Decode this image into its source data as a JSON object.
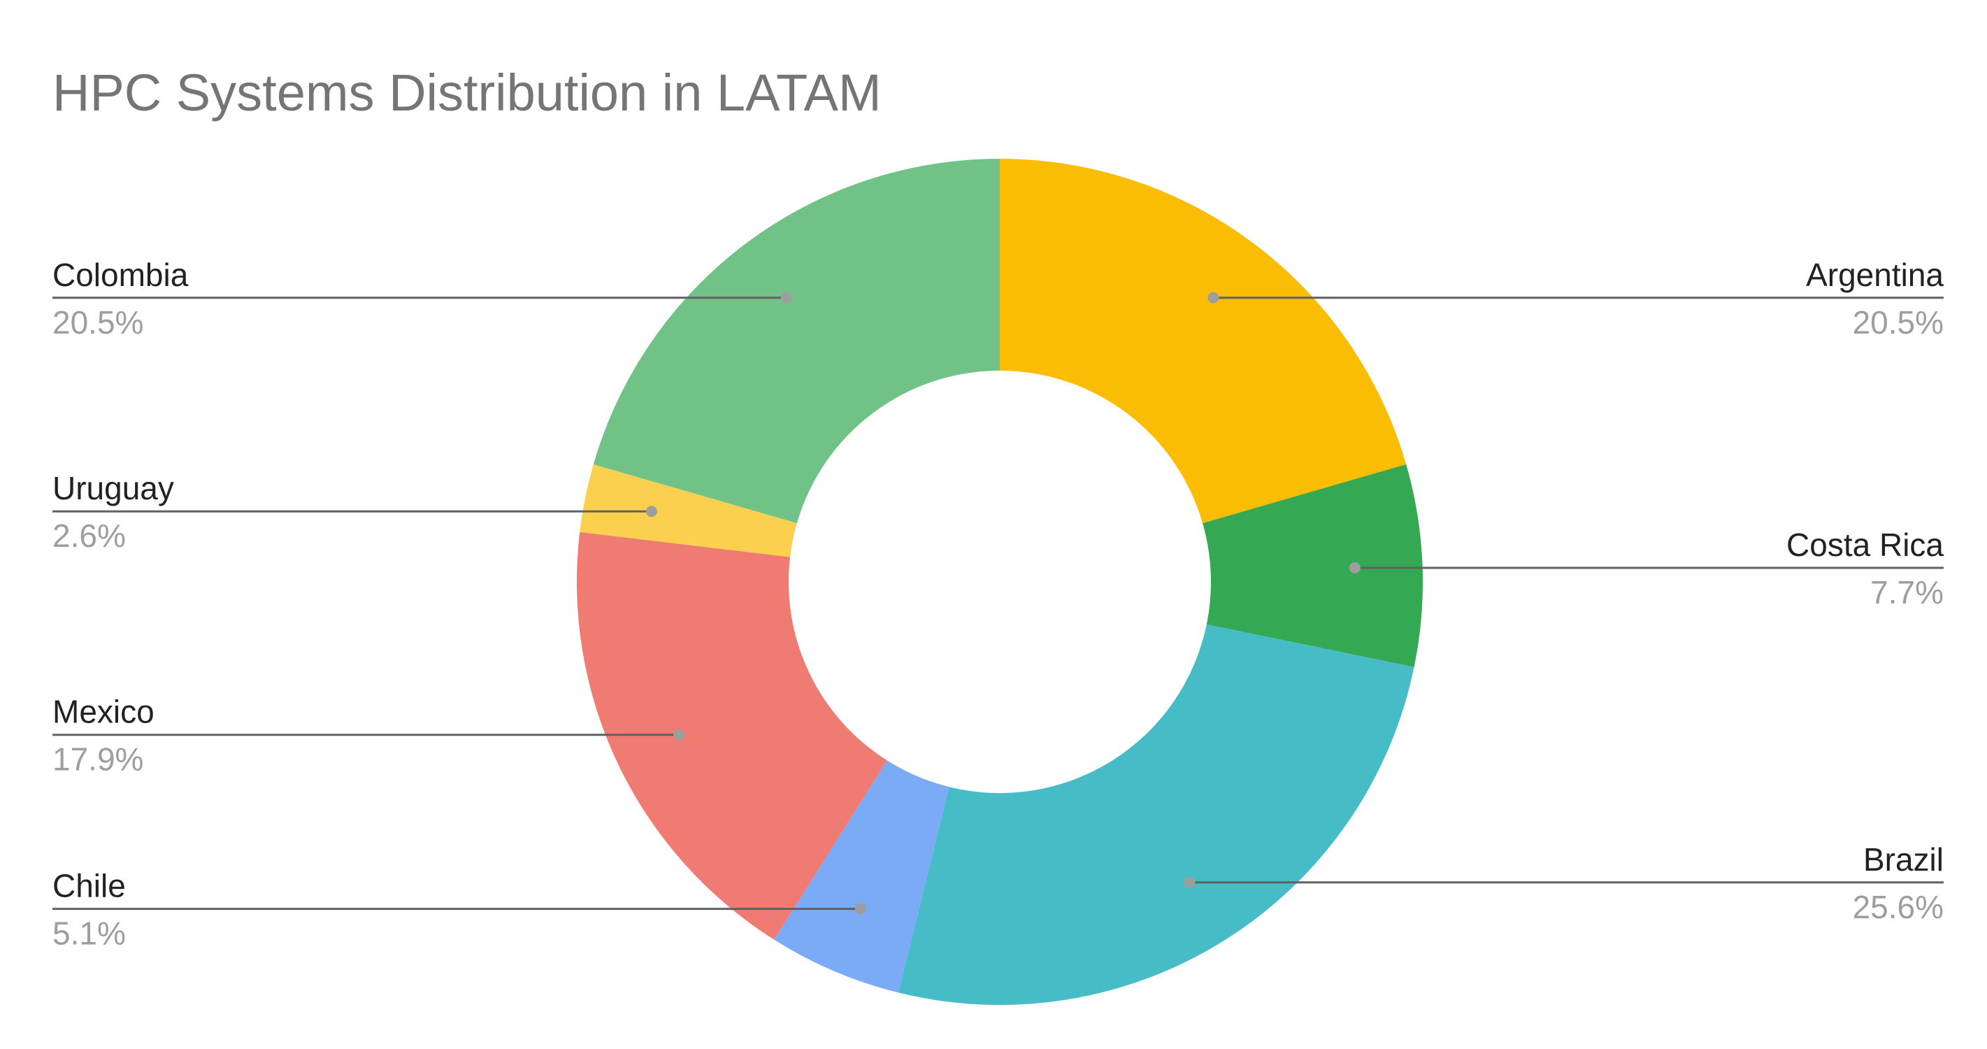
{
  "chart_data": {
    "type": "pie",
    "variant": "donut",
    "title": "HPC Systems Distribution in LATAM",
    "start_angle_deg": 0,
    "direction": "clockwise",
    "slices": [
      {
        "label": "Argentina",
        "percent_label": "20.5%",
        "value": 20.5,
        "color": "#fbbc04",
        "side": "right"
      },
      {
        "label": "Costa Rica",
        "percent_label": "7.7%",
        "value": 7.7,
        "color": "#34a853",
        "side": "right"
      },
      {
        "label": "Brazil",
        "percent_label": "25.6%",
        "value": 25.6,
        "color": "#46bdc6",
        "side": "right"
      },
      {
        "label": "Chile",
        "percent_label": "5.1%",
        "value": 5.1,
        "color": "#7baaf7",
        "side": "left"
      },
      {
        "label": "Mexico",
        "percent_label": "17.9%",
        "value": 17.9,
        "color": "#f07b72",
        "side": "left"
      },
      {
        "label": "Uruguay",
        "percent_label": "2.6%",
        "value": 2.6,
        "color": "#fcd04f",
        "side": "left"
      },
      {
        "label": "Colombia",
        "percent_label": "20.5%",
        "value": 20.5,
        "color": "#71c287",
        "side": "left"
      }
    ]
  }
}
